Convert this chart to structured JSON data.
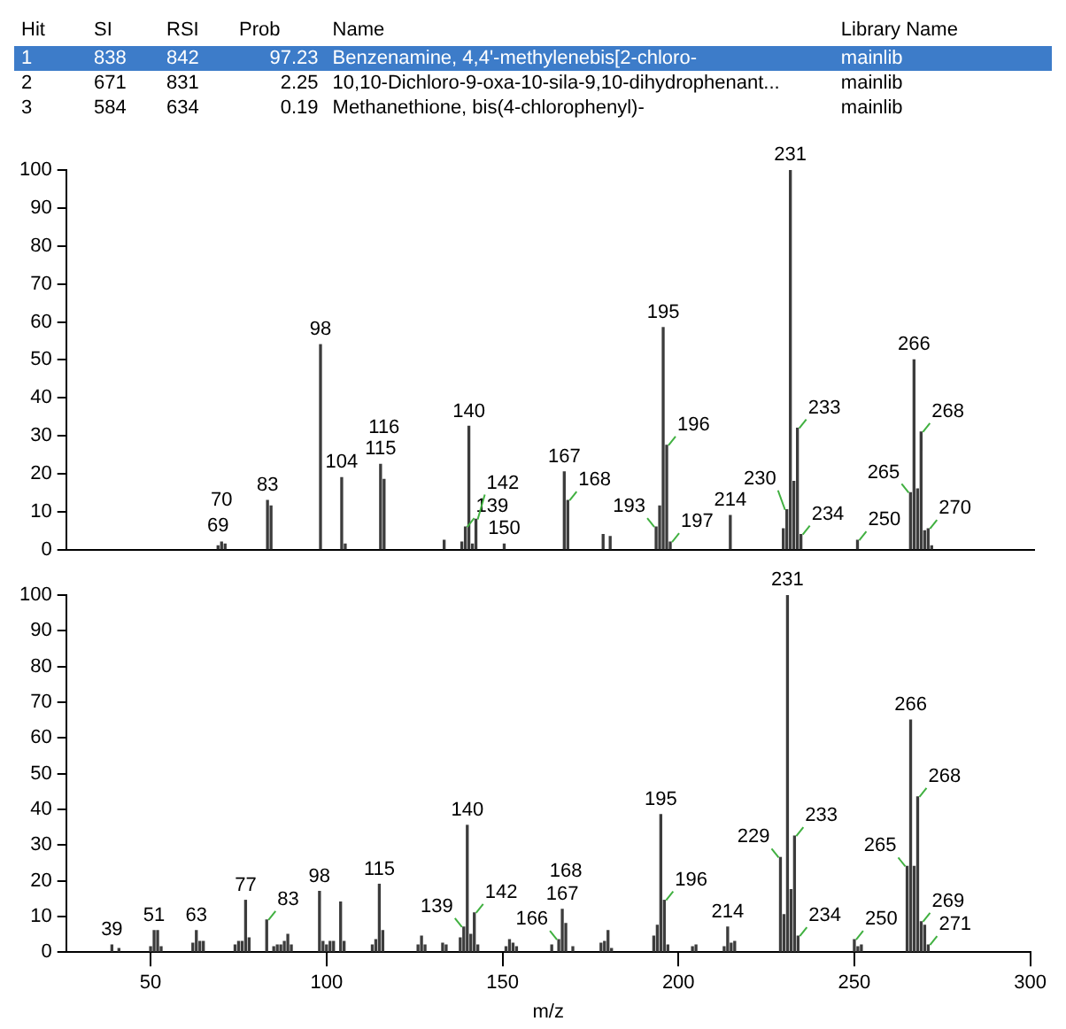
{
  "chart_data": [
    {
      "type": "other",
      "categories": [
        "Hit",
        "SI",
        "RSI",
        "Prob",
        "Name",
        "Library Name"
      ],
      "cell_labels": [
        [
          "1",
          "838",
          "842",
          "97.23",
          "Benzenamine, 4,4'-methylenebis[2-chloro-",
          "mainlib"
        ],
        [
          "2",
          "671",
          "831",
          "2.25",
          "10,10-Dichloro-9-oxa-10-sila-9,10-dihydrophenant...",
          "mainlib"
        ],
        [
          "3",
          "584",
          "634",
          "0.19",
          "Methanethione, bis(4-chlorophenyl)-",
          "mainlib"
        ]
      ]
    },
    {
      "type": "bar",
      "color": "#3c3c3c",
      "grid": false,
      "tick_labels": "y",
      "xlim": [
        26,
        300
      ],
      "xticks": [
        50,
        100,
        150,
        200,
        250,
        300
      ],
      "ylim": [
        0,
        100
      ],
      "yticks": [
        0,
        10,
        20,
        30,
        40,
        50,
        60,
        70,
        80,
        90,
        100
      ],
      "x": [
        69,
        70,
        71,
        83,
        84,
        98,
        104,
        105,
        115,
        116,
        133,
        138,
        139,
        140,
        141,
        142,
        150,
        167,
        168,
        178,
        180,
        193,
        194,
        195,
        196,
        197,
        214,
        229,
        230,
        231,
        232,
        233,
        234,
        250,
        265,
        266,
        267,
        268,
        269,
        270,
        271
      ],
      "values": [
        1,
        2,
        1.5,
        13,
        11.5,
        54,
        19,
        1.5,
        22.5,
        18.5,
        2.5,
        2,
        6,
        32.5,
        1.5,
        8,
        1.5,
        20.5,
        13,
        4,
        3.5,
        6,
        11.5,
        58.5,
        27.5,
        2,
        9,
        5.5,
        10.5,
        100,
        18,
        32,
        4,
        2.5,
        15,
        50,
        16,
        31,
        5,
        5.5,
        1
      ],
      "annotations": [
        {
          "text": "69",
          "x": 69,
          "y": 1
        },
        {
          "text": "70",
          "x": 70,
          "y": 2
        },
        {
          "text": "83",
          "x": 83,
          "y": 13
        },
        {
          "text": "98",
          "x": 98,
          "y": 54
        },
        {
          "text": "104",
          "x": 104,
          "y": 19
        },
        {
          "text": "115",
          "x": 115,
          "y": 22.5
        },
        {
          "text": "116",
          "x": 116,
          "y": 18.5
        },
        {
          "text": "139",
          "x": 139,
          "y": 6
        },
        {
          "text": "140",
          "x": 140,
          "y": 32.5
        },
        {
          "text": "142",
          "x": 142,
          "y": 8
        },
        {
          "text": "150",
          "x": 150,
          "y": 1.5
        },
        {
          "text": "167",
          "x": 167,
          "y": 20.5
        },
        {
          "text": "168",
          "x": 168,
          "y": 13
        },
        {
          "text": "193",
          "x": 193,
          "y": 6
        },
        {
          "text": "195",
          "x": 195,
          "y": 58.5
        },
        {
          "text": "196",
          "x": 196,
          "y": 27.5
        },
        {
          "text": "197",
          "x": 197,
          "y": 2
        },
        {
          "text": "214",
          "x": 214,
          "y": 9
        },
        {
          "text": "230",
          "x": 230,
          "y": 10.5
        },
        {
          "text": "231",
          "x": 231,
          "y": 100
        },
        {
          "text": "233",
          "x": 233,
          "y": 32
        },
        {
          "text": "234",
          "x": 234,
          "y": 4
        },
        {
          "text": "250",
          "x": 250,
          "y": 2.5
        },
        {
          "text": "265",
          "x": 265,
          "y": 15
        },
        {
          "text": "266",
          "x": 266,
          "y": 50
        },
        {
          "text": "268",
          "x": 268,
          "y": 31
        },
        {
          "text": "270",
          "x": 270,
          "y": 5.5
        }
      ]
    },
    {
      "type": "bar",
      "color": "#3c3c3c",
      "grid": false,
      "xlabel": "m/z",
      "xlim": [
        26,
        300
      ],
      "xticks": [
        50,
        100,
        150,
        200,
        250,
        300
      ],
      "ylim": [
        0,
        100
      ],
      "yticks": [
        0,
        10,
        20,
        30,
        40,
        50,
        60,
        70,
        80,
        90,
        100
      ],
      "x": [
        39,
        41,
        50,
        51,
        52,
        53,
        62,
        63,
        64,
        65,
        74,
        75,
        76,
        77,
        78,
        83,
        85,
        86,
        87,
        88,
        89,
        90,
        98,
        99,
        100,
        101,
        102,
        104,
        105,
        113,
        114,
        115,
        116,
        126,
        127,
        128,
        133,
        134,
        138,
        139,
        140,
        141,
        142,
        143,
        151,
        152,
        153,
        154,
        164,
        166,
        167,
        168,
        170,
        178,
        179,
        180,
        181,
        193,
        194,
        195,
        196,
        197,
        204,
        205,
        213,
        214,
        215,
        216,
        229,
        230,
        231,
        232,
        233,
        234,
        250,
        251,
        252,
        265,
        266,
        267,
        268,
        269,
        270,
        271
      ],
      "values": [
        2,
        1,
        1.5,
        6,
        6,
        1.5,
        2.5,
        6,
        3,
        3,
        2,
        3,
        3,
        14.5,
        4,
        9,
        1.5,
        2,
        2,
        3,
        5,
        2,
        17,
        3,
        2,
        3,
        3,
        14,
        3,
        2,
        3.5,
        19,
        6,
        2,
        4.5,
        2,
        2.5,
        2,
        4,
        7,
        35.5,
        5,
        11,
        2,
        1.5,
        3.5,
        2.5,
        1.5,
        2,
        3.5,
        12,
        8,
        1.5,
        2.5,
        3,
        6,
        1,
        4.5,
        7.5,
        38.5,
        14.5,
        2,
        1.5,
        2,
        1.5,
        7,
        2.5,
        3,
        26.5,
        10.5,
        100,
        17.5,
        32.5,
        4.5,
        3.5,
        1.5,
        2,
        24,
        65,
        24,
        43.5,
        8.5,
        7.5,
        2
      ],
      "annotations": [
        {
          "text": "39",
          "x": 39,
          "y": 2
        },
        {
          "text": "51",
          "x": 51,
          "y": 6
        },
        {
          "text": "63",
          "x": 63,
          "y": 6
        },
        {
          "text": "77",
          "x": 77,
          "y": 14.5
        },
        {
          "text": "83",
          "x": 83,
          "y": 9
        },
        {
          "text": "98",
          "x": 98,
          "y": 17
        },
        {
          "text": "115",
          "x": 115,
          "y": 19
        },
        {
          "text": "139",
          "x": 139,
          "y": 7
        },
        {
          "text": "140",
          "x": 140,
          "y": 35.5
        },
        {
          "text": "142",
          "x": 142,
          "y": 11
        },
        {
          "text": "166",
          "x": 166,
          "y": 3.5
        },
        {
          "text": "167",
          "x": 167,
          "y": 12
        },
        {
          "text": "168",
          "x": 168,
          "y": 8
        },
        {
          "text": "195",
          "x": 195,
          "y": 38.5
        },
        {
          "text": "196",
          "x": 196,
          "y": 14.5
        },
        {
          "text": "214",
          "x": 214,
          "y": 7
        },
        {
          "text": "229",
          "x": 229,
          "y": 26.5
        },
        {
          "text": "231",
          "x": 231,
          "y": 100
        },
        {
          "text": "233",
          "x": 233,
          "y": 32.5
        },
        {
          "text": "234",
          "x": 234,
          "y": 4.5
        },
        {
          "text": "250",
          "x": 250,
          "y": 3.5
        },
        {
          "text": "265",
          "x": 265,
          "y": 24
        },
        {
          "text": "266",
          "x": 266,
          "y": 65
        },
        {
          "text": "268",
          "x": 268,
          "y": 43.5
        },
        {
          "text": "269",
          "x": 269,
          "y": 8.5
        },
        {
          "text": "271",
          "x": 271,
          "y": 2
        }
      ]
    }
  ]
}
